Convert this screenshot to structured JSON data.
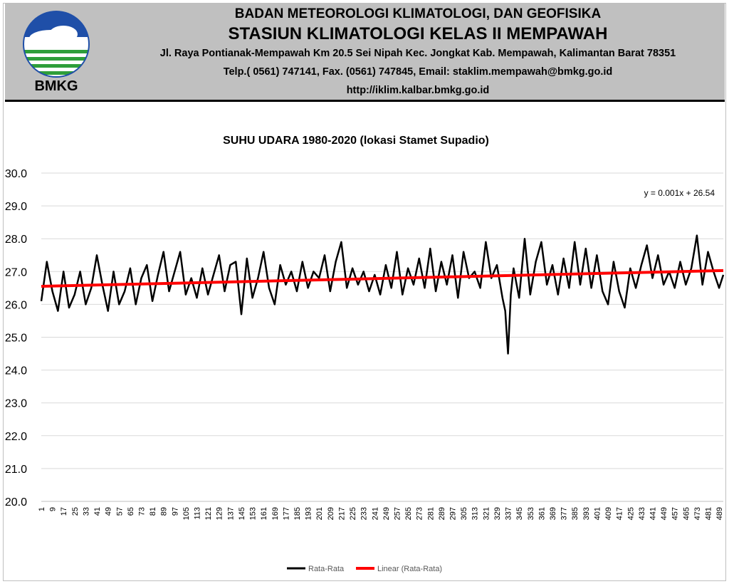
{
  "header": {
    "logo_text": "BMKG",
    "line1": "BADAN METEOROLOGI KLIMATOLOGI, DAN GEOFISIKA",
    "line2": "STASIUN KLIMATOLOGI KELAS II MEMPAWAH",
    "line3": "Jl. Raya Pontianak-Mempawah Km 20.5 Sei Nipah Kec. Jongkat Kab. Mempawah, Kalimantan Barat 78351",
    "line4": "Telp.( 0561) 747141, Fax. (0561) 747845, Email: staklim.mempawah@bmkg.go.id",
    "line5": "http://iklim.kalbar.bmkg.go.id"
  },
  "colors": {
    "header_bg": "#c0c0c0",
    "logo_blue": "#1f4fa8",
    "logo_green": "#2e9e3a",
    "series_line": "#000000",
    "trend_line": "#ff0000",
    "grid": "#d9d9d9"
  },
  "chart_data": {
    "type": "line",
    "title": "SUHU UDARA 1980-2020 (lokasi Stamet Supadio)",
    "xlabel": "",
    "ylabel": "",
    "ylim": [
      20.0,
      30.0
    ],
    "yticks": [
      "20.0",
      "21.0",
      "22.0",
      "23.0",
      "24.0",
      "25.0",
      "26.0",
      "27.0",
      "28.0",
      "29.0",
      "30.0"
    ],
    "xlim": [
      1,
      492
    ],
    "xticks": [
      1,
      9,
      17,
      25,
      33,
      41,
      49,
      57,
      65,
      73,
      81,
      89,
      97,
      105,
      113,
      121,
      129,
      137,
      145,
      153,
      161,
      169,
      177,
      185,
      193,
      201,
      209,
      217,
      225,
      233,
      241,
      249,
      257,
      265,
      273,
      281,
      289,
      297,
      305,
      313,
      321,
      329,
      337,
      345,
      353,
      361,
      369,
      377,
      385,
      393,
      401,
      409,
      417,
      425,
      433,
      441,
      449,
      457,
      465,
      473,
      481,
      489
    ],
    "grid": true,
    "legend_position": "bottom",
    "equation": "y = 0.001x + 26.54",
    "series": [
      {
        "name": "Rata-Rata",
        "color": "#000000",
        "x": [
          1,
          5,
          9,
          13,
          17,
          21,
          25,
          29,
          33,
          37,
          41,
          45,
          49,
          53,
          57,
          61,
          65,
          69,
          73,
          77,
          81,
          85,
          89,
          93,
          97,
          101,
          105,
          109,
          113,
          117,
          121,
          125,
          129,
          133,
          137,
          141,
          145,
          149,
          153,
          157,
          161,
          165,
          169,
          173,
          177,
          181,
          185,
          189,
          193,
          197,
          201,
          205,
          209,
          213,
          217,
          221,
          225,
          229,
          233,
          237,
          241,
          245,
          249,
          253,
          257,
          261,
          265,
          269,
          273,
          277,
          281,
          285,
          289,
          293,
          297,
          301,
          305,
          309,
          313,
          317,
          321,
          325,
          329,
          333,
          335,
          337,
          339,
          341,
          345,
          349,
          353,
          357,
          361,
          365,
          369,
          373,
          377,
          381,
          385,
          389,
          393,
          397,
          401,
          405,
          409,
          413,
          417,
          421,
          425,
          429,
          433,
          437,
          441,
          445,
          449,
          453,
          457,
          461,
          465,
          469,
          473,
          477,
          481,
          485,
          489,
          492
        ],
        "values": [
          26.1,
          27.3,
          26.4,
          25.8,
          27.0,
          25.9,
          26.3,
          27.0,
          26.0,
          26.5,
          27.5,
          26.6,
          25.8,
          27.0,
          26.0,
          26.4,
          27.1,
          26.0,
          26.8,
          27.2,
          26.1,
          26.9,
          27.6,
          26.4,
          27.0,
          27.6,
          26.3,
          26.8,
          26.2,
          27.1,
          26.3,
          26.9,
          27.5,
          26.4,
          27.2,
          27.3,
          25.7,
          27.4,
          26.2,
          26.8,
          27.6,
          26.5,
          26.0,
          27.2,
          26.6,
          27.0,
          26.4,
          27.3,
          26.5,
          27.0,
          26.8,
          27.5,
          26.4,
          27.3,
          27.9,
          26.5,
          27.1,
          26.6,
          27.0,
          26.4,
          26.9,
          26.3,
          27.2,
          26.5,
          27.6,
          26.3,
          27.1,
          26.6,
          27.4,
          26.5,
          27.7,
          26.4,
          27.3,
          26.6,
          27.5,
          26.2,
          27.6,
          26.8,
          27.0,
          26.5,
          27.9,
          26.8,
          27.2,
          26.2,
          25.8,
          24.5,
          26.3,
          27.1,
          26.2,
          28.0,
          26.3,
          27.3,
          27.9,
          26.6,
          27.2,
          26.3,
          27.4,
          26.5,
          27.9,
          26.6,
          27.7,
          26.5,
          27.5,
          26.4,
          26.0,
          27.3,
          26.4,
          25.9,
          27.1,
          26.5,
          27.2,
          27.8,
          26.8,
          27.5,
          26.6,
          27.0,
          26.5,
          27.3,
          26.6,
          27.1,
          28.1,
          26.6,
          27.6,
          27.0,
          26.5,
          26.9
        ]
      },
      {
        "name": "Linear (Rata-Rata)",
        "color": "#ff0000",
        "x": [
          1,
          492
        ],
        "values": [
          26.55,
          27.03
        ]
      }
    ]
  }
}
